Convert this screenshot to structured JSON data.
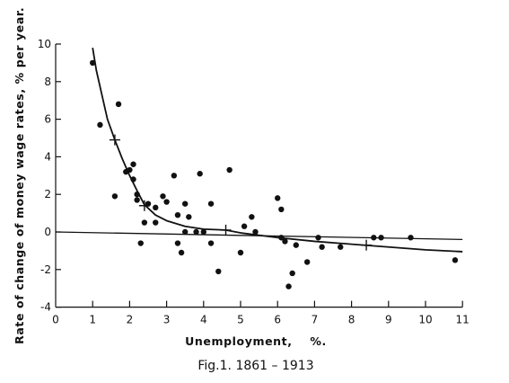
{
  "chart_data": {
    "type": "scatter",
    "xlabel": "Unemployment,    %.",
    "ylabel": "Rate of change of money wage rates, % per year.",
    "caption": "Fig.1. 1861 – 1913",
    "xlim": [
      0,
      11
    ],
    "ylim": [
      -4,
      10
    ],
    "x_ticks": [
      0,
      1,
      2,
      3,
      4,
      5,
      6,
      7,
      8,
      9,
      10,
      11
    ],
    "y_ticks": [
      -4,
      -2,
      0,
      2,
      4,
      6,
      8,
      10
    ],
    "grid": false,
    "points": [
      {
        "x": 1.0,
        "y": 9.0
      },
      {
        "x": 1.2,
        "y": 5.7
      },
      {
        "x": 1.7,
        "y": 6.8
      },
      {
        "x": 1.6,
        "y": 1.9
      },
      {
        "x": 1.9,
        "y": 3.2
      },
      {
        "x": 2.0,
        "y": 3.3
      },
      {
        "x": 2.1,
        "y": 3.6
      },
      {
        "x": 2.1,
        "y": 2.8
      },
      {
        "x": 2.2,
        "y": 2.0
      },
      {
        "x": 2.2,
        "y": 1.7
      },
      {
        "x": 2.3,
        "y": -0.6
      },
      {
        "x": 2.4,
        "y": 0.5
      },
      {
        "x": 2.5,
        "y": 1.5
      },
      {
        "x": 2.7,
        "y": 1.3
      },
      {
        "x": 2.7,
        "y": 0.5
      },
      {
        "x": 2.9,
        "y": 1.9
      },
      {
        "x": 3.0,
        "y": 1.6
      },
      {
        "x": 3.2,
        "y": 3.0
      },
      {
        "x": 3.3,
        "y": 0.9
      },
      {
        "x": 3.3,
        "y": -0.6
      },
      {
        "x": 3.4,
        "y": -1.1
      },
      {
        "x": 3.5,
        "y": 1.5
      },
      {
        "x": 3.5,
        "y": 0.0
      },
      {
        "x": 3.6,
        "y": 0.8
      },
      {
        "x": 3.8,
        "y": 0.0
      },
      {
        "x": 3.9,
        "y": 3.1
      },
      {
        "x": 4.0,
        "y": 0.0
      },
      {
        "x": 4.2,
        "y": 1.5
      },
      {
        "x": 4.2,
        "y": -0.6
      },
      {
        "x": 4.4,
        "y": -2.1
      },
      {
        "x": 4.7,
        "y": 3.3
      },
      {
        "x": 5.0,
        "y": -1.1
      },
      {
        "x": 5.1,
        "y": 0.3
      },
      {
        "x": 5.3,
        "y": 0.8
      },
      {
        "x": 5.4,
        "y": 0.0
      },
      {
        "x": 6.0,
        "y": 1.8
      },
      {
        "x": 6.1,
        "y": 1.2
      },
      {
        "x": 6.1,
        "y": -0.3
      },
      {
        "x": 6.2,
        "y": -0.5
      },
      {
        "x": 6.3,
        "y": -2.9
      },
      {
        "x": 6.4,
        "y": -2.2
      },
      {
        "x": 6.5,
        "y": -0.7
      },
      {
        "x": 6.8,
        "y": -1.6
      },
      {
        "x": 7.1,
        "y": -0.3
      },
      {
        "x": 7.2,
        "y": -0.8
      },
      {
        "x": 7.7,
        "y": -0.8
      },
      {
        "x": 8.6,
        "y": -0.3
      },
      {
        "x": 8.8,
        "y": -0.3
      },
      {
        "x": 9.6,
        "y": -0.3
      },
      {
        "x": 10.8,
        "y": -1.5
      }
    ],
    "crosses": [
      {
        "x": 1.6,
        "y": 4.9
      },
      {
        "x": 2.4,
        "y": 1.4
      },
      {
        "x": 4.6,
        "y": 0.1
      },
      {
        "x": 8.4,
        "y": -0.7
      }
    ],
    "fitted_curve": {
      "points": [
        [
          1.0,
          9.8
        ],
        [
          1.1,
          8.6
        ],
        [
          1.25,
          7.3
        ],
        [
          1.4,
          6.0
        ],
        [
          1.6,
          4.9
        ],
        [
          1.8,
          3.9
        ],
        [
          2.0,
          3.0
        ],
        [
          2.2,
          2.2
        ],
        [
          2.4,
          1.45
        ],
        [
          2.7,
          0.9
        ],
        [
          3.0,
          0.6
        ],
        [
          3.5,
          0.3
        ],
        [
          4.0,
          0.15
        ],
        [
          4.6,
          0.1
        ],
        [
          5.0,
          -0.05
        ],
        [
          6.0,
          -0.3
        ],
        [
          7.0,
          -0.5
        ],
        [
          8.0,
          -0.65
        ],
        [
          9.0,
          -0.8
        ],
        [
          10.0,
          -0.95
        ],
        [
          11.0,
          -1.05
        ]
      ]
    },
    "reference_line": {
      "points": [
        [
          0,
          0
        ],
        [
          11,
          -0.4
        ]
      ]
    }
  }
}
